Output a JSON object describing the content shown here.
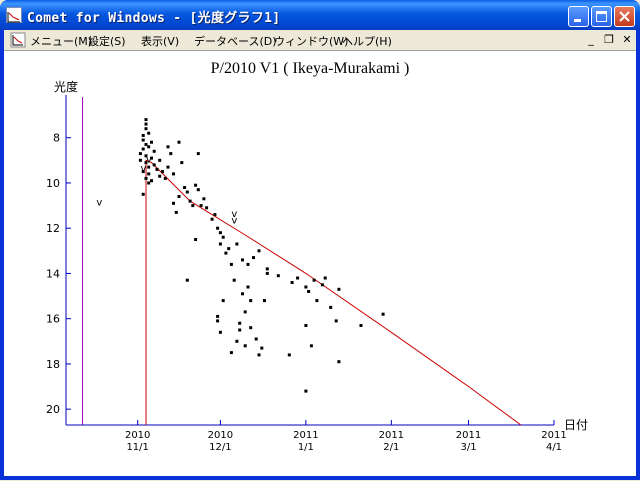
{
  "window": {
    "title": "Comet for Windows - [光度グラフ1]"
  },
  "menu": {
    "items": [
      "メニュー(M)",
      "設定(S)",
      "表示(V)",
      "データベース(D)",
      "ウィンドウ(W)",
      "ヘルプ(H)"
    ]
  },
  "colors": {
    "titlebar": "#0054e3",
    "axis": "#0000c0",
    "trend_line": "#cc0000",
    "marker_line": "#a000c0",
    "points": "#000000"
  },
  "chart_data": {
    "type": "scatter",
    "title": "P/2010 V1 ( Ikeya-Murakami )",
    "ylabel": "光度",
    "xlabel": "日付",
    "y_inverted": true,
    "ylim": [
      20.7,
      6.2
    ],
    "xlim": [
      "2010-10-06",
      "2011-04-01"
    ],
    "y_ticks": [
      8,
      10,
      12,
      14,
      16,
      18,
      20
    ],
    "x_ticks": [
      {
        "date": "2010-11-01",
        "year": "2010",
        "md": "11/1"
      },
      {
        "date": "2010-12-01",
        "year": "2010",
        "md": "12/1"
      },
      {
        "date": "2011-01-01",
        "year": "2011",
        "md": "1/1"
      },
      {
        "date": "2011-02-01",
        "year": "2011",
        "md": "2/1"
      },
      {
        "date": "2011-03-01",
        "year": "2011",
        "md": "3/1"
      },
      {
        "date": "2011-04-01",
        "year": "2011",
        "md": "4/1"
      }
    ],
    "vertical_line_purple": {
      "date": "2010-10-12"
    },
    "trend_line": [
      {
        "date": "2010-11-04",
        "mag": 20.7
      },
      {
        "date": "2010-11-04",
        "mag": 15.0
      },
      {
        "date": "2010-11-04",
        "mag": 9.0
      },
      {
        "date": "2010-11-06",
        "mag": 9.1
      },
      {
        "date": "2010-11-20",
        "mag": 10.8
      },
      {
        "date": "2010-12-10",
        "mag": 12.3
      },
      {
        "date": "2011-01-01",
        "mag": 14.0
      },
      {
        "date": "2011-02-01",
        "mag": 16.6
      },
      {
        "date": "2011-03-01",
        "mag": 19.0
      },
      {
        "date": "2011-03-20",
        "mag": 20.7
      }
    ],
    "annotations": [
      {
        "text": "v",
        "date": "2010-10-17",
        "mag": 11.0
      },
      {
        "text": "v",
        "date": "2010-11-02",
        "mag": 9.5
      },
      {
        "text": "v",
        "date": "2010-11-04",
        "mag": 9.1
      },
      {
        "text": "v",
        "date": "2010-12-05",
        "mag": 11.5
      },
      {
        "text": "v",
        "date": "2010-12-05",
        "mag": 11.8
      }
    ],
    "points": [
      {
        "date": "2010-11-04",
        "mag": 7.2
      },
      {
        "date": "2010-11-04",
        "mag": 7.4
      },
      {
        "date": "2010-11-04",
        "mag": 7.6
      },
      {
        "date": "2010-11-03",
        "mag": 7.9
      },
      {
        "date": "2010-11-05",
        "mag": 7.8
      },
      {
        "date": "2010-11-03",
        "mag": 8.1
      },
      {
        "date": "2010-11-04",
        "mag": 8.3
      },
      {
        "date": "2010-11-06",
        "mag": 8.2
      },
      {
        "date": "2010-11-03",
        "mag": 8.5
      },
      {
        "date": "2010-11-05",
        "mag": 8.4
      },
      {
        "date": "2010-11-07",
        "mag": 8.6
      },
      {
        "date": "2010-11-02",
        "mag": 8.7
      },
      {
        "date": "2010-11-04",
        "mag": 8.8
      },
      {
        "date": "2010-11-06",
        "mag": 8.9
      },
      {
        "date": "2010-11-02",
        "mag": 9.0
      },
      {
        "date": "2010-11-04",
        "mag": 9.1
      },
      {
        "date": "2010-11-05",
        "mag": 9.3
      },
      {
        "date": "2010-11-07",
        "mag": 9.2
      },
      {
        "date": "2010-11-03",
        "mag": 9.5
      },
      {
        "date": "2010-11-05",
        "mag": 9.6
      },
      {
        "date": "2010-11-08",
        "mag": 9.4
      },
      {
        "date": "2010-11-04",
        "mag": 9.8
      },
      {
        "date": "2010-11-06",
        "mag": 9.9
      },
      {
        "date": "2010-11-09",
        "mag": 9.0
      },
      {
        "date": "2010-11-09",
        "mag": 9.7
      },
      {
        "date": "2010-11-10",
        "mag": 9.5
      },
      {
        "date": "2010-11-11",
        "mag": 9.8
      },
      {
        "date": "2010-11-03",
        "mag": 10.5
      },
      {
        "date": "2010-11-05",
        "mag": 10.0
      },
      {
        "date": "2010-11-12",
        "mag": 9.3
      },
      {
        "date": "2010-11-12",
        "mag": 8.4
      },
      {
        "date": "2010-11-13",
        "mag": 8.7
      },
      {
        "date": "2010-11-14",
        "mag": 9.6
      },
      {
        "date": "2010-11-14",
        "mag": 10.9
      },
      {
        "date": "2010-11-15",
        "mag": 11.3
      },
      {
        "date": "2010-11-16",
        "mag": 10.6
      },
      {
        "date": "2010-11-16",
        "mag": 8.2
      },
      {
        "date": "2010-11-17",
        "mag": 9.1
      },
      {
        "date": "2010-11-18",
        "mag": 10.2
      },
      {
        "date": "2010-11-19",
        "mag": 10.4
      },
      {
        "date": "2010-11-20",
        "mag": 10.8
      },
      {
        "date": "2010-11-19",
        "mag": 14.3
      },
      {
        "date": "2010-11-21",
        "mag": 11.0
      },
      {
        "date": "2010-11-22",
        "mag": 10.1
      },
      {
        "date": "2010-11-22",
        "mag": 12.5
      },
      {
        "date": "2010-11-23",
        "mag": 8.7
      },
      {
        "date": "2010-11-23",
        "mag": 10.3
      },
      {
        "date": "2010-11-24",
        "mag": 11.0
      },
      {
        "date": "2010-11-25",
        "mag": 10.7
      },
      {
        "date": "2010-11-26",
        "mag": 11.1
      },
      {
        "date": "2010-11-28",
        "mag": 11.6
      },
      {
        "date": "2010-11-29",
        "mag": 11.4
      },
      {
        "date": "2010-11-30",
        "mag": 12.0
      },
      {
        "date": "2010-12-01",
        "mag": 12.2
      },
      {
        "date": "2010-12-01",
        "mag": 12.7
      },
      {
        "date": "2010-12-02",
        "mag": 12.4
      },
      {
        "date": "2010-11-30",
        "mag": 16.1
      },
      {
        "date": "2010-11-30",
        "mag": 15.9
      },
      {
        "date": "2010-12-01",
        "mag": 16.6
      },
      {
        "date": "2010-12-02",
        "mag": 15.2
      },
      {
        "date": "2010-12-03",
        "mag": 13.1
      },
      {
        "date": "2010-12-04",
        "mag": 12.9
      },
      {
        "date": "2010-12-05",
        "mag": 17.5
      },
      {
        "date": "2010-12-05",
        "mag": 13.6
      },
      {
        "date": "2010-12-06",
        "mag": 14.3
      },
      {
        "date": "2010-12-07",
        "mag": 17.0
      },
      {
        "date": "2010-12-07",
        "mag": 12.7
      },
      {
        "date": "2010-12-08",
        "mag": 16.2
      },
      {
        "date": "2010-12-08",
        "mag": 16.5
      },
      {
        "date": "2010-12-09",
        "mag": 13.4
      },
      {
        "date": "2010-12-09",
        "mag": 14.9
      },
      {
        "date": "2010-12-10",
        "mag": 15.7
      },
      {
        "date": "2010-12-10",
        "mag": 17.2
      },
      {
        "date": "2010-12-11",
        "mag": 14.6
      },
      {
        "date": "2010-12-11",
        "mag": 13.6
      },
      {
        "date": "2010-12-12",
        "mag": 15.2
      },
      {
        "date": "2010-12-12",
        "mag": 16.4
      },
      {
        "date": "2010-12-13",
        "mag": 13.3
      },
      {
        "date": "2010-12-14",
        "mag": 16.9
      },
      {
        "date": "2010-12-15",
        "mag": 13.0
      },
      {
        "date": "2010-12-15",
        "mag": 17.6
      },
      {
        "date": "2010-12-16",
        "mag": 17.3
      },
      {
        "date": "2010-12-17",
        "mag": 15.2
      },
      {
        "date": "2010-12-18",
        "mag": 13.8
      },
      {
        "date": "2010-12-18",
        "mag": 14.0
      },
      {
        "date": "2010-12-22",
        "mag": 14.1
      },
      {
        "date": "2010-12-26",
        "mag": 17.6
      },
      {
        "date": "2010-12-27",
        "mag": 14.4
      },
      {
        "date": "2010-12-29",
        "mag": 14.2
      },
      {
        "date": "2011-01-01",
        "mag": 14.6
      },
      {
        "date": "2011-01-01",
        "mag": 16.3
      },
      {
        "date": "2011-01-01",
        "mag": 19.2
      },
      {
        "date": "2011-01-02",
        "mag": 14.8
      },
      {
        "date": "2011-01-03",
        "mag": 17.2
      },
      {
        "date": "2011-01-04",
        "mag": 14.3
      },
      {
        "date": "2011-01-05",
        "mag": 15.2
      },
      {
        "date": "2011-01-07",
        "mag": 14.5
      },
      {
        "date": "2011-01-08",
        "mag": 14.2
      },
      {
        "date": "2011-01-10",
        "mag": 15.5
      },
      {
        "date": "2011-01-12",
        "mag": 16.1
      },
      {
        "date": "2011-01-13",
        "mag": 14.7
      },
      {
        "date": "2011-01-13",
        "mag": 17.9
      },
      {
        "date": "2011-01-21",
        "mag": 16.3
      },
      {
        "date": "2011-01-29",
        "mag": 15.8
      }
    ]
  }
}
